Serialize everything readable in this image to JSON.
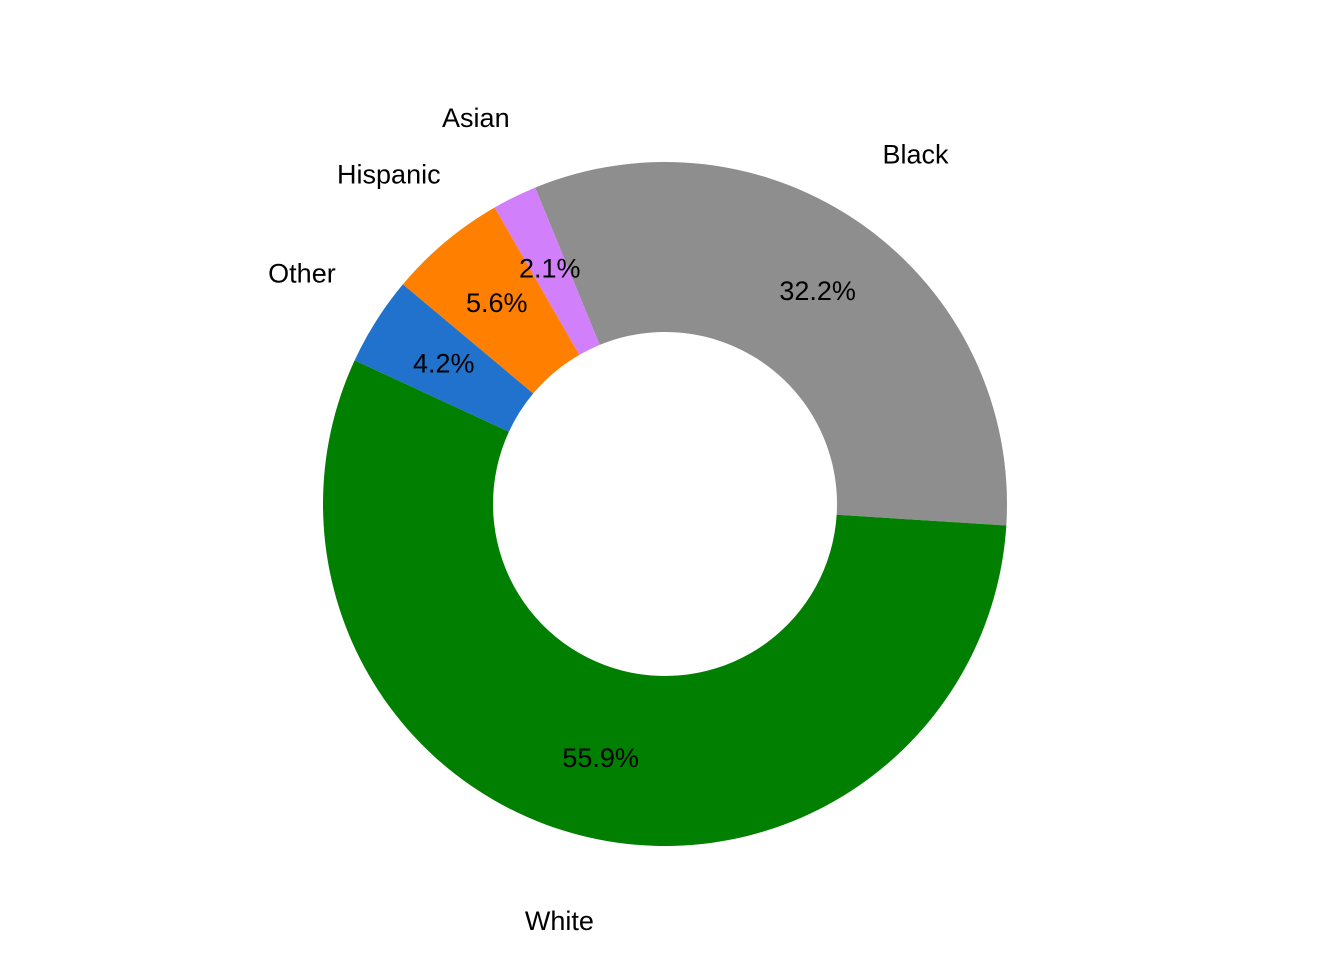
{
  "chart_data": {
    "type": "pie",
    "donut": true,
    "title": "",
    "slices": [
      {
        "label": "Black",
        "value": 32.2,
        "value_label": "32.2%",
        "color": "#8E8E8E"
      },
      {
        "label": "Asian",
        "value": 2.1,
        "value_label": "2.1%",
        "color": "#D17FFA"
      },
      {
        "label": "Hispanic",
        "value": 5.6,
        "value_label": "5.6%",
        "color": "#FF7F00"
      },
      {
        "label": "Other",
        "value": 4.2,
        "value_label": "4.2%",
        "color": "#2172CC"
      },
      {
        "label": "White",
        "value": 55.9,
        "value_label": "55.9%",
        "color": "#007F00"
      }
    ],
    "legend": "none"
  }
}
